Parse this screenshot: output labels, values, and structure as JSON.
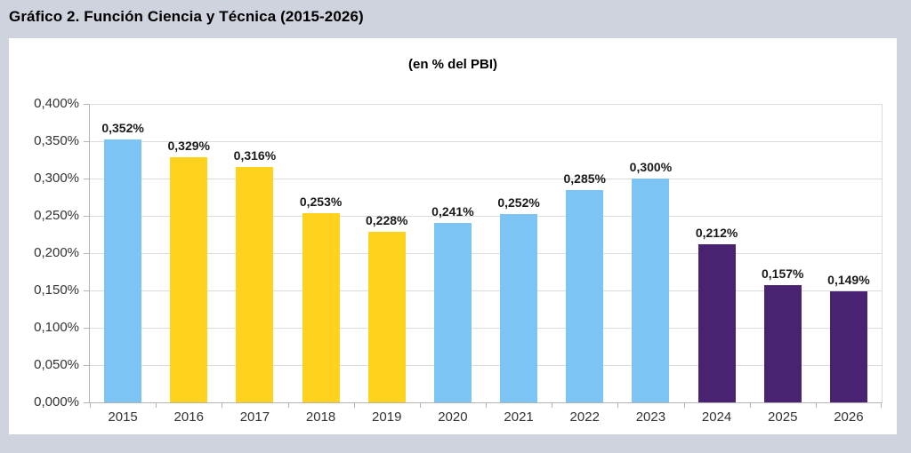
{
  "page": {
    "title": "Gráfico 2. Función Ciencia y Técnica (2015-2026)"
  },
  "chart_data": {
    "type": "bar",
    "title": "Gráfico 2. Función Ciencia y Técnica (2015-2026)",
    "subtitle": "(en % del PBI)",
    "unit": "% del PBI",
    "categories": [
      "2015",
      "2016",
      "2017",
      "2018",
      "2019",
      "2020",
      "2021",
      "2022",
      "2023",
      "2024",
      "2025",
      "2026"
    ],
    "values": [
      0.352,
      0.329,
      0.316,
      0.253,
      0.228,
      0.241,
      0.252,
      0.285,
      0.3,
      0.212,
      0.157,
      0.149
    ],
    "value_labels": [
      "0,352%",
      "0,329%",
      "0,316%",
      "0,253%",
      "0,228%",
      "0,241%",
      "0,252%",
      "0,285%",
      "0,300%",
      "0,212%",
      "0,157%",
      "0,149%"
    ],
    "bar_colors": [
      "#7CC4F4",
      "#FFD21E",
      "#FFD21E",
      "#FFD21E",
      "#FFD21E",
      "#7CC4F4",
      "#7CC4F4",
      "#7CC4F4",
      "#7CC4F4",
      "#4A2272",
      "#4A2272",
      "#4A2272"
    ],
    "color_groups": {
      "light_blue": "#7CC4F4",
      "yellow": "#FFD21E",
      "dark_purple": "#4A2272"
    },
    "xlabel": "",
    "ylabel": "",
    "ylim": [
      0,
      0.4
    ],
    "ytick_step": 0.05,
    "ytick_labels": [
      "0,000%",
      "0,050%",
      "0,100%",
      "0,150%",
      "0,200%",
      "0,250%",
      "0,300%",
      "0,350%",
      "0,400%"
    ],
    "grid": true,
    "legend": "none"
  }
}
